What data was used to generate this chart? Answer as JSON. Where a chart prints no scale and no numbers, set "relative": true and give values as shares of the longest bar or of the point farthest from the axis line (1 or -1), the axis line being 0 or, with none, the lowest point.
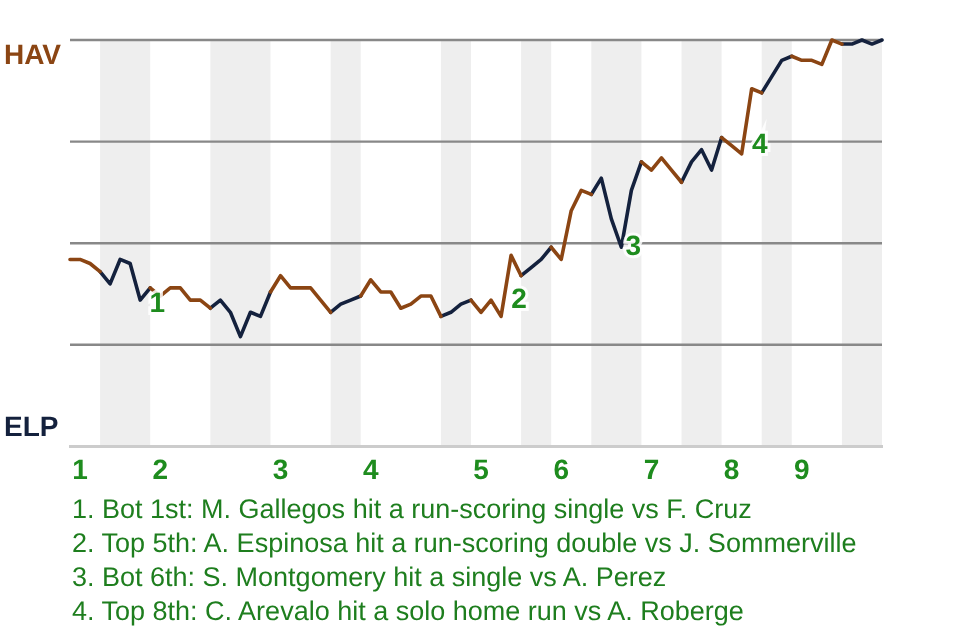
{
  "chart_data": {
    "type": "line",
    "relative": true,
    "categories": [
      null,
      "1",
      null,
      null,
      null,
      null,
      null,
      null,
      null,
      "2",
      null,
      null,
      null,
      null,
      null,
      null,
      null,
      null,
      null,
      null,
      null,
      "3",
      null,
      null,
      null,
      null,
      null,
      null,
      null,
      null,
      "4",
      null,
      null,
      null,
      null,
      null,
      null,
      null,
      null,
      null,
      null,
      "5",
      null,
      null,
      null,
      null,
      null,
      null,
      null,
      "6",
      null,
      null,
      null,
      null,
      null,
      null,
      null,
      null,
      "7",
      null,
      null,
      null,
      null,
      null,
      null,
      null,
      "8",
      null,
      null,
      null,
      null,
      null,
      null,
      "9",
      null,
      null,
      null,
      null,
      null,
      null,
      null,
      null
    ],
    "grid": "y",
    "legend": false,
    "marker": "none",
    "line_style": "solid",
    "series": [
      {
        "color": "#8b4513",
        "values": [
          0.46,
          0.46,
          0.45,
          0.43,
          null,
          null,
          null,
          null,
          0.39,
          0.37,
          0.39,
          0.39,
          0.36,
          0.36,
          0.34,
          null,
          null,
          null,
          null,
          null,
          0.38,
          0.42,
          0.39,
          0.39,
          0.39,
          0.36,
          0.33,
          null,
          null,
          0.37,
          0.41,
          0.38,
          0.38,
          0.34,
          0.35,
          0.37,
          0.37,
          0.32,
          null,
          null,
          0.36,
          0.33,
          0.36,
          0.32,
          0.47,
          0.42,
          null,
          null,
          0.49,
          0.46,
          0.58,
          0.63,
          0.62,
          null,
          null,
          null,
          null,
          0.7,
          0.68,
          0.71,
          0.68,
          0.65,
          null,
          null,
          null,
          0.76,
          0.74,
          0.72,
          0.88,
          0.87,
          null,
          null,
          0.96,
          0.95,
          0.95,
          0.94,
          1,
          0.99,
          null,
          null,
          null,
          null
        ]
      },
      {
        "color": "#14213d",
        "values": [
          null,
          null,
          null,
          0.43,
          0.4,
          0.46,
          0.45,
          0.36,
          0.39,
          null,
          null,
          null,
          null,
          null,
          0.34,
          0.36,
          0.33,
          0.27,
          0.33,
          0.32,
          0.38,
          null,
          null,
          null,
          null,
          null,
          0.33,
          0.35,
          0.36,
          0.37,
          null,
          null,
          null,
          null,
          null,
          null,
          null,
          0.32,
          0.33,
          0.35,
          0.36,
          null,
          null,
          null,
          null,
          0.42,
          0.44,
          0.46,
          0.49,
          null,
          null,
          null,
          0.62,
          0.66,
          0.56,
          0.49,
          0.63,
          0.7,
          null,
          null,
          null,
          0.65,
          0.7,
          0.73,
          0.68,
          0.76,
          null,
          null,
          null,
          0.87,
          0.91,
          0.95,
          0.96,
          null,
          null,
          null,
          null,
          0.99,
          0.99,
          1,
          0.99,
          1
        ]
      }
    ],
    "annotations": [
      "HAV",
      "ELP",
      "1",
      "2",
      "3",
      "4",
      "1. Bot 1st: M. Gallegos hit a run-scoring single vs F. Cruz",
      "2. Top 5th: A. Espinosa hit a run-scoring double vs J. Sommerville",
      "3. Bot 6th: S. Montgomery hit a single vs A. Perez",
      "4. Top 8th: C. Arevalo hit a solo home run vs A. Roberge"
    ]
  }
}
